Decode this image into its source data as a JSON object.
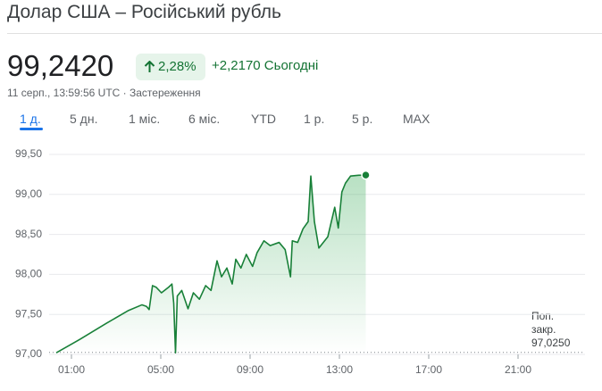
{
  "header": {
    "title": "Долар США – Російський рубль",
    "price": "99,2420",
    "change_percent": "2,28%",
    "change_today": "+2,2170 Сьогодні",
    "timestamp": "11 серп., 13:59:56 UTC · Застереження"
  },
  "tabs": [
    "1 д.",
    "5 дн.",
    "1 міс.",
    "6 міс.",
    "YTD",
    "1 р.",
    "5 р.",
    "MAX"
  ],
  "chart_data": {
    "type": "line",
    "x": [
      0.32,
      1.39,
      2.57,
      3.56,
      4.16,
      4.36,
      4.48,
      4.63,
      4.79,
      5.03,
      5.35,
      5.5,
      5.58,
      5.66,
      5.74,
      5.94,
      6.22,
      6.46,
      6.73,
      7.01,
      7.25,
      7.52,
      7.72,
      7.96,
      8.2,
      8.36,
      8.59,
      8.83,
      9.11,
      9.31,
      9.62,
      9.9,
      10.3,
      10.57,
      10.81,
      10.89,
      11.13,
      11.37,
      11.6,
      11.72,
      11.88,
      12.08,
      12.48,
      12.79,
      12.95,
      13.11,
      13.27,
      13.5,
      13.86,
      14.18
    ],
    "series": [
      {
        "color": "#188038",
        "values": [
          97.02,
          97.19,
          97.39,
          97.55,
          97.62,
          97.6,
          97.56,
          97.86,
          97.84,
          97.77,
          97.84,
          97.88,
          97.64,
          97.02,
          97.73,
          97.8,
          97.57,
          97.77,
          97.69,
          97.86,
          97.8,
          98.17,
          97.97,
          98.08,
          97.88,
          98.19,
          98.08,
          98.25,
          98.1,
          98.27,
          98.42,
          98.36,
          98.4,
          98.31,
          97.97,
          98.42,
          98.4,
          98.57,
          98.66,
          99.23,
          98.66,
          98.33,
          98.47,
          98.84,
          98.58,
          99.03,
          99.14,
          99.23,
          99.24,
          99.242
        ]
      }
    ],
    "xlim": [
      0,
      24
    ],
    "xticks": [
      {
        "value": 1,
        "label": "01:00"
      },
      {
        "value": 5,
        "label": "05:00"
      },
      {
        "value": 9,
        "label": "09:00"
      },
      {
        "value": 13,
        "label": "13:00"
      },
      {
        "value": 17,
        "label": "17:00"
      },
      {
        "value": 21,
        "label": "21:00"
      }
    ],
    "ylim": [
      97,
      99.5
    ],
    "yticks": [
      {
        "value": 97,
        "label": "97,00"
      },
      {
        "value": 97.5,
        "label": "97,50"
      },
      {
        "value": 98,
        "label": "98,00"
      },
      {
        "value": 98.5,
        "label": "98,50"
      },
      {
        "value": 99,
        "label": "99,00"
      },
      {
        "value": 99.5,
        "label": "99,50"
      }
    ],
    "grid": true,
    "prev_close": {
      "value": 97.025,
      "label": "Поп. закр.",
      "value_label": "97,0250"
    }
  }
}
